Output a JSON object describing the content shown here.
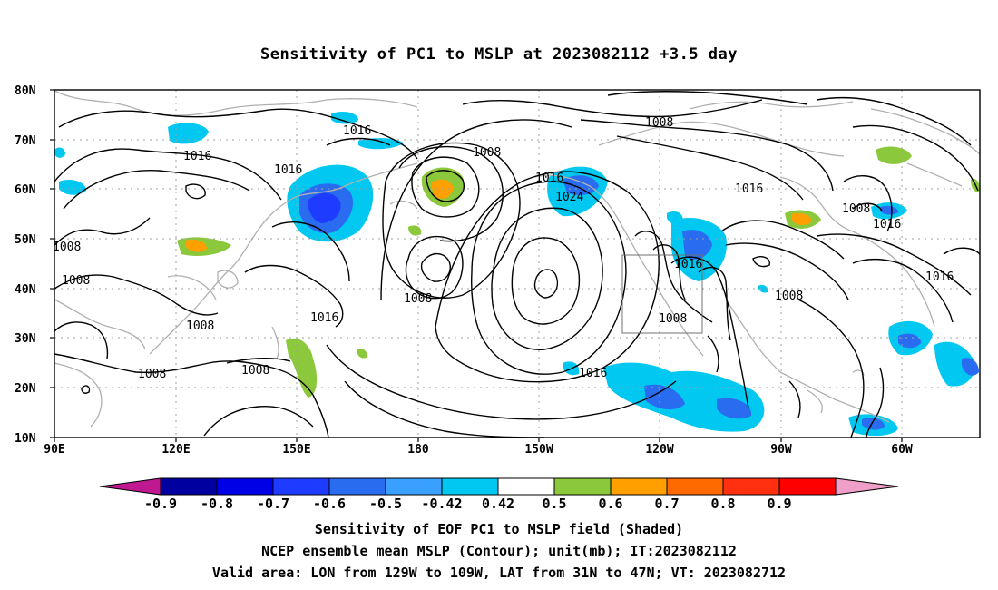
{
  "title": "Sensitivity of PC1 to MSLP at 2023082112 +3.5 day",
  "lat_labels": [
    "80N",
    "70N",
    "60N",
    "50N",
    "40N",
    "30N",
    "20N",
    "10N"
  ],
  "lon_labels": [
    "90E",
    "120E",
    "150E",
    "180",
    "150W",
    "120W",
    "90W",
    "60W"
  ],
  "contour_labels": [
    "1016",
    "1016",
    "1016",
    "1016",
    "1008",
    "1008",
    "1008",
    "1008",
    "1008",
    "1008",
    "1008",
    "1008",
    "1008",
    "1016",
    "1024",
    "1008",
    "1016",
    "1016",
    "1008",
    "1016",
    "1016",
    "1008",
    "1016"
  ],
  "colorbar": {
    "labels": [
      "-0.9",
      "-0.8",
      "-0.7",
      "-0.6",
      "-0.5",
      "-0.42",
      "0.42",
      "0.5",
      "0.6",
      "0.7",
      "0.8",
      "0.9"
    ],
    "colors": [
      "#0000a0",
      "#0000e6",
      "#1e3cff",
      "#2a6cf0",
      "#3aa0ff",
      "#00c8f0",
      "#ffffff",
      "#8cc83c",
      "#ffa000",
      "#ff6a00",
      "#ff3010",
      "#ff0000"
    ],
    "low_end_color": "#c01890",
    "high_end_color": "#f0a0c8"
  },
  "captions": {
    "line1": "Sensitivity of EOF PC1 to MSLP field (Shaded)",
    "line2": "NCEP ensemble mean MSLP (Contour); unit(mb); IT:2023082112",
    "line3": "Valid area: LON from 129W to 109W, LAT from 31N to 47N; VT: 2023082712"
  }
}
